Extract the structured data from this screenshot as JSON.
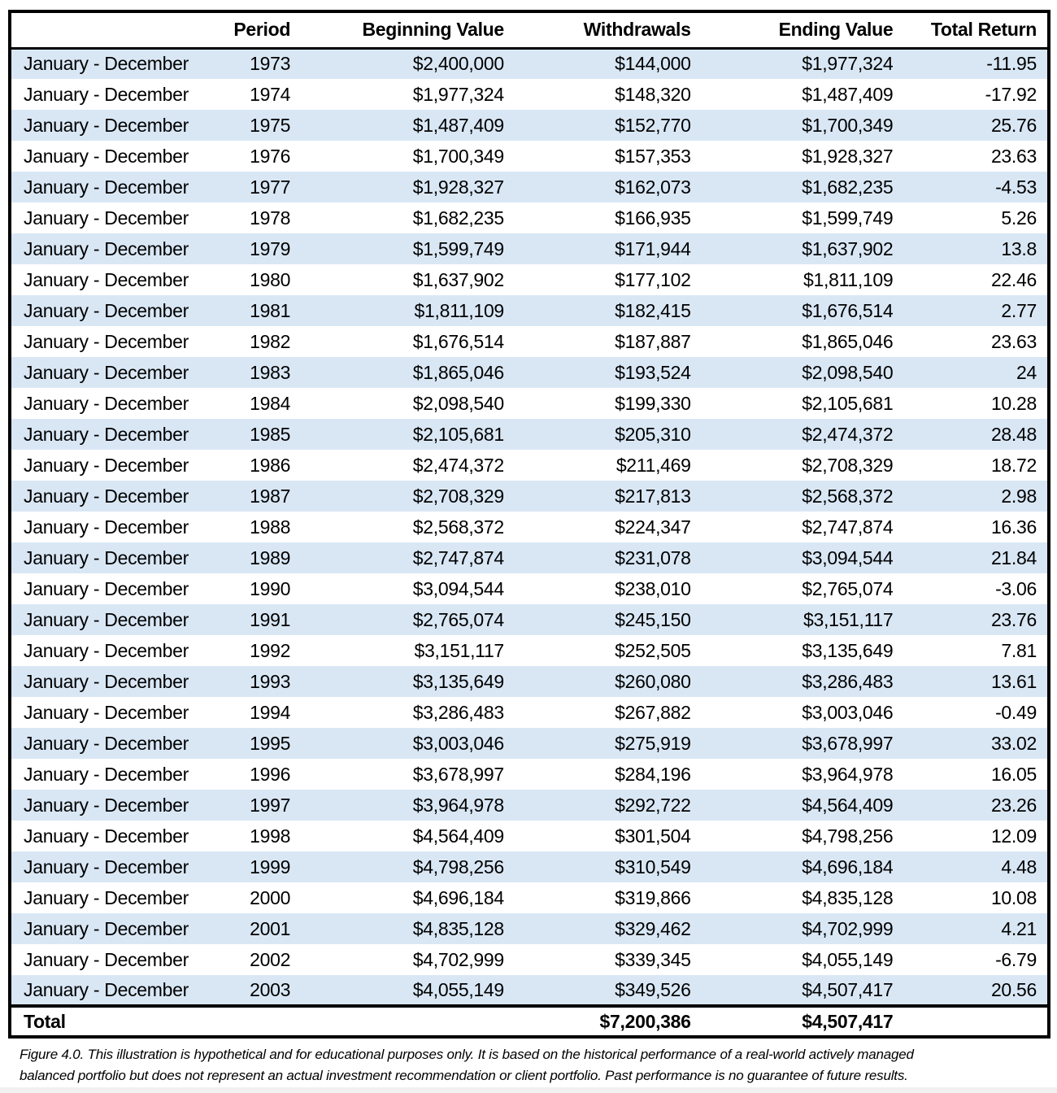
{
  "colors": {
    "stripe": "#D9E7F5",
    "border": "#000000"
  },
  "table": {
    "headers": [
      "",
      "Period",
      "Beginning Value",
      "Withdrawals",
      "Ending Value",
      "Total Return"
    ],
    "row_label": "January - December",
    "rows": [
      {
        "label": "January - December",
        "year": "1973",
        "beginning": "$2,400,000",
        "withdrawals": "$144,000",
        "ending": "$1,977,324",
        "total_return": "-11.95"
      },
      {
        "label": "January - December",
        "year": "1974",
        "beginning": "$1,977,324",
        "withdrawals": "$148,320",
        "ending": "$1,487,409",
        "total_return": "-17.92"
      },
      {
        "label": "January - December",
        "year": "1975",
        "beginning": "$1,487,409",
        "withdrawals": "$152,770",
        "ending": "$1,700,349",
        "total_return": "25.76"
      },
      {
        "label": "January - December",
        "year": "1976",
        "beginning": "$1,700,349",
        "withdrawals": "$157,353",
        "ending": "$1,928,327",
        "total_return": "23.63"
      },
      {
        "label": "January - December",
        "year": "1977",
        "beginning": "$1,928,327",
        "withdrawals": "$162,073",
        "ending": "$1,682,235",
        "total_return": "-4.53"
      },
      {
        "label": "January - December",
        "year": "1978",
        "beginning": "$1,682,235",
        "withdrawals": "$166,935",
        "ending": "$1,599,749",
        "total_return": "5.26"
      },
      {
        "label": "January - December",
        "year": "1979",
        "beginning": "$1,599,749",
        "withdrawals": "$171,944",
        "ending": "$1,637,902",
        "total_return": "13.8"
      },
      {
        "label": "January - December",
        "year": "1980",
        "beginning": "$1,637,902",
        "withdrawals": "$177,102",
        "ending": "$1,811,109",
        "total_return": "22.46"
      },
      {
        "label": "January - December",
        "year": "1981",
        "beginning": "$1,811,109",
        "withdrawals": "$182,415",
        "ending": "$1,676,514",
        "total_return": "2.77"
      },
      {
        "label": "January - December",
        "year": "1982",
        "beginning": "$1,676,514",
        "withdrawals": "$187,887",
        "ending": "$1,865,046",
        "total_return": "23.63"
      },
      {
        "label": "January - December",
        "year": "1983",
        "beginning": "$1,865,046",
        "withdrawals": "$193,524",
        "ending": "$2,098,540",
        "total_return": "24"
      },
      {
        "label": "January - December",
        "year": "1984",
        "beginning": "$2,098,540",
        "withdrawals": "$199,330",
        "ending": "$2,105,681",
        "total_return": "10.28"
      },
      {
        "label": "January - December",
        "year": "1985",
        "beginning": "$2,105,681",
        "withdrawals": "$205,310",
        "ending": "$2,474,372",
        "total_return": "28.48"
      },
      {
        "label": "January - December",
        "year": "1986",
        "beginning": "$2,474,372",
        "withdrawals": "$211,469",
        "ending": "$2,708,329",
        "total_return": "18.72"
      },
      {
        "label": "January - December",
        "year": "1987",
        "beginning": "$2,708,329",
        "withdrawals": "$217,813",
        "ending": "$2,568,372",
        "total_return": "2.98"
      },
      {
        "label": "January - December",
        "year": "1988",
        "beginning": "$2,568,372",
        "withdrawals": "$224,347",
        "ending": "$2,747,874",
        "total_return": "16.36"
      },
      {
        "label": "January - December",
        "year": "1989",
        "beginning": "$2,747,874",
        "withdrawals": "$231,078",
        "ending": "$3,094,544",
        "total_return": "21.84"
      },
      {
        "label": "January - December",
        "year": "1990",
        "beginning": "$3,094,544",
        "withdrawals": "$238,010",
        "ending": "$2,765,074",
        "total_return": "-3.06"
      },
      {
        "label": "January - December",
        "year": "1991",
        "beginning": "$2,765,074",
        "withdrawals": "$245,150",
        "ending": "$3,151,117",
        "total_return": "23.76"
      },
      {
        "label": "January - December",
        "year": "1992",
        "beginning": "$3,151,117",
        "withdrawals": "$252,505",
        "ending": "$3,135,649",
        "total_return": "7.81"
      },
      {
        "label": "January - December",
        "year": "1993",
        "beginning": "$3,135,649",
        "withdrawals": "$260,080",
        "ending": "$3,286,483",
        "total_return": "13.61"
      },
      {
        "label": "January - December",
        "year": "1994",
        "beginning": "$3,286,483",
        "withdrawals": "$267,882",
        "ending": "$3,003,046",
        "total_return": "-0.49"
      },
      {
        "label": "January - December",
        "year": "1995",
        "beginning": "$3,003,046",
        "withdrawals": "$275,919",
        "ending": "$3,678,997",
        "total_return": "33.02"
      },
      {
        "label": "January - December",
        "year": "1996",
        "beginning": "$3,678,997",
        "withdrawals": "$284,196",
        "ending": "$3,964,978",
        "total_return": "16.05"
      },
      {
        "label": "January - December",
        "year": "1997",
        "beginning": "$3,964,978",
        "withdrawals": "$292,722",
        "ending": "$4,564,409",
        "total_return": "23.26"
      },
      {
        "label": "January - December",
        "year": "1998",
        "beginning": "$4,564,409",
        "withdrawals": "$301,504",
        "ending": "$4,798,256",
        "total_return": "12.09"
      },
      {
        "label": "January - December",
        "year": "1999",
        "beginning": "$4,798,256",
        "withdrawals": "$310,549",
        "ending": "$4,696,184",
        "total_return": "4.48"
      },
      {
        "label": "January - December",
        "year": "2000",
        "beginning": "$4,696,184",
        "withdrawals": "$319,866",
        "ending": "$4,835,128",
        "total_return": "10.08"
      },
      {
        "label": "January - December",
        "year": "2001",
        "beginning": "$4,835,128",
        "withdrawals": "$329,462",
        "ending": "$4,702,999",
        "total_return": "4.21"
      },
      {
        "label": "January - December",
        "year": "2002",
        "beginning": "$4,702,999",
        "withdrawals": "$339,345",
        "ending": "$4,055,149",
        "total_return": "-6.79"
      },
      {
        "label": "January - December",
        "year": "2003",
        "beginning": "$4,055,149",
        "withdrawals": "$349,526",
        "ending": "$4,507,417",
        "total_return": "20.56"
      }
    ],
    "total": {
      "label": "Total",
      "withdrawals": "$7,200,386",
      "ending": "$4,507,417"
    }
  },
  "caption": {
    "line1": "Figure 4.0. This illustration is hypothetical and for educational purposes only. It is based on the historical performance of a real-world actively managed",
    "line2": "balanced portfolio but does not represent an actual investment recommendation or client portfolio. Past performance is no guarantee of future results."
  }
}
